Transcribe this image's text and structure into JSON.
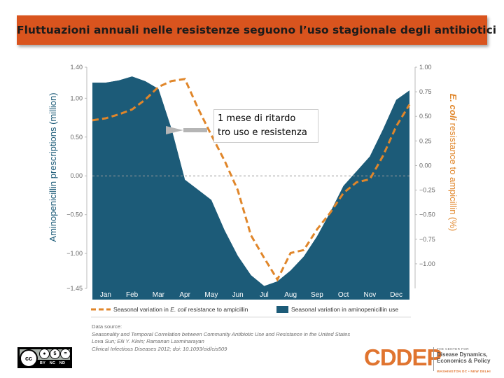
{
  "header": {
    "title": "Fluttuazioni annuali nelle resistenze seguono l’uso stagionale degli antibiotici"
  },
  "chart_data": {
    "type": "area",
    "categories": [
      "Jan",
      "Feb",
      "Mar",
      "Apr",
      "May",
      "Jun",
      "Jul",
      "Aug",
      "Sep",
      "Oct",
      "Nov",
      "Dec"
    ],
    "ylabel_left": "Aminopenicillin prescriptions (million)",
    "ylabel_right_italic": "E. coli",
    "ylabel_right_rest": " resistance to ampicillin (%)",
    "ylim_left": [
      -1.45,
      1.4
    ],
    "ylim_right": [
      -1.25,
      1.0
    ],
    "yticks_left": [
      1.4,
      1.0,
      0.5,
      0.0,
      -0.5,
      -1.0,
      -1.45
    ],
    "ytick_labels_left": [
      "1.40",
      "1.00",
      "0.50",
      "0.00",
      "−0.50",
      "−1.00",
      "−1.45"
    ],
    "yticks_right": [
      1.0,
      0.75,
      0.5,
      0.25,
      0.0,
      -0.25,
      -0.5,
      -0.75,
      -1.0
    ],
    "ytick_labels_right": [
      "1.00",
      "0.75",
      "0.50",
      "0.25",
      "0.00",
      "−0.25",
      "−0.50",
      "−0.75",
      "−1.00"
    ],
    "zero_line": true,
    "series": [
      {
        "name": "Seasonal variation in aminopenicillin use",
        "axis": "left",
        "style": "area",
        "color": "#1c5b78",
        "x": [
          0.5,
          1.0,
          1.5,
          2.0,
          2.5,
          3.0,
          3.5,
          4.0,
          4.5,
          5.0,
          5.5,
          6.0,
          6.5,
          7.0,
          7.5,
          8.0,
          8.5,
          9.0,
          9.5,
          10.0,
          10.5,
          11.0,
          11.5
        ],
        "values": [
          1.2,
          1.23,
          1.28,
          1.22,
          1.12,
          0.6,
          -0.05,
          -0.18,
          -0.31,
          -0.7,
          -1.03,
          -1.28,
          -1.42,
          -1.36,
          -1.22,
          -1.04,
          -0.78,
          -0.47,
          -0.13,
          0.06,
          0.25,
          0.6,
          0.98
        ]
      },
      {
        "name_prefix": "Seasonal variation in ",
        "name_italic": "E. coli",
        "name_suffix": " resistance to ampicillin",
        "axis": "right",
        "style": "dashed-line",
        "color": "#e0862a",
        "x": [
          0.5,
          1.0,
          1.5,
          2.0,
          2.5,
          3.0,
          3.5,
          4.0,
          4.5,
          5.0,
          5.5,
          6.0,
          6.5,
          7.0,
          7.5,
          8.0,
          8.5,
          9.0,
          9.5,
          10.0,
          10.5,
          11.0,
          11.5
        ],
        "values": [
          0.48,
          0.52,
          0.57,
          0.67,
          0.8,
          0.86,
          0.88,
          0.58,
          0.31,
          0.05,
          -0.25,
          -0.71,
          -0.94,
          -1.16,
          -0.89,
          -0.86,
          -0.65,
          -0.48,
          -0.28,
          -0.17,
          -0.14,
          0.1,
          0.4
        ]
      }
    ],
    "legend_position": "bottom",
    "annotation": {
      "line1": "1 mese di ritardo",
      "line2": "tro uso e resistenza"
    }
  },
  "source": {
    "heading": "Data source:",
    "line1": "Seasonality and Temporal Correlation between Community Antibiotic Use and Resistance in the United States",
    "line2": "Lova Sun; Eili Y. Klein; Ramanan Laxminarayan",
    "line3": "Clinical Infectious Diseases 2012; doi: 10.1093/cid/cis509"
  },
  "license": {
    "cc": "cc",
    "by": "BY",
    "nc": "NC",
    "nd": "ND"
  },
  "logo": {
    "wordmark": "CDDEP",
    "center_for": "THE CENTER FOR",
    "name_line1": "Disease Dynamics,",
    "name_line2": "Economics & Policy",
    "locations": "WASHINGTON DC • NEW DELHI"
  },
  "colors": {
    "area": "#1c5b78",
    "dashed": "#e0862a",
    "title_bg": "#d9541e",
    "axis_label": "#1c5b78",
    "right_label": "#e0862a"
  }
}
